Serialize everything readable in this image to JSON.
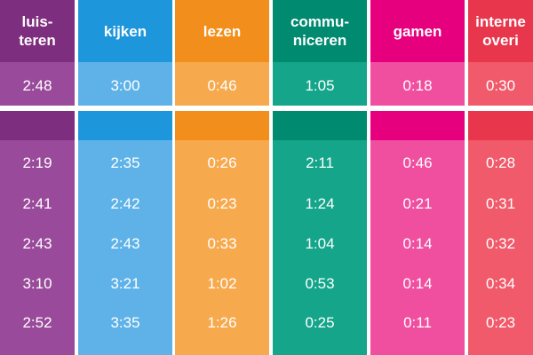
{
  "chart_data": {
    "type": "table",
    "columns": [
      {
        "label_lines": [
          "luis-",
          "teren"
        ],
        "bg": "#9a4a9a",
        "band": "#7e2e7e",
        "total": "2:48",
        "values": [
          "2:19",
          "2:41",
          "2:43",
          "3:10",
          "2:52"
        ]
      },
      {
        "label_lines": [
          "kijken"
        ],
        "bg": "#5fb2e8",
        "band": "#1e96dc",
        "total": "3:00",
        "values": [
          "2:35",
          "2:42",
          "2:43",
          "3:21",
          "3:35"
        ]
      },
      {
        "label_lines": [
          "lezen"
        ],
        "bg": "#f7a94d",
        "band": "#f28f1c",
        "total": "0:46",
        "values": [
          "0:26",
          "0:23",
          "0:33",
          "1:02",
          "1:26"
        ]
      },
      {
        "label_lines": [
          "commu-",
          "niceren"
        ],
        "bg": "#14a58a",
        "band": "#008a70",
        "total": "1:05",
        "values": [
          "2:11",
          "1:24",
          "1:04",
          "0:53",
          "0:25"
        ]
      },
      {
        "label_lines": [
          "gamen"
        ],
        "bg": "#f04fa0",
        "band": "#e6007e",
        "total": "0:18",
        "values": [
          "0:46",
          "0:21",
          "0:14",
          "0:14",
          "0:11"
        ]
      },
      {
        "label_lines": [
          "interne",
          "overi"
        ],
        "bg": "#f05a6a",
        "band": "#e8364c",
        "total": "0:30",
        "values": [
          "0:28",
          "0:31",
          "0:32",
          "0:34",
          "0:23"
        ]
      }
    ]
  }
}
